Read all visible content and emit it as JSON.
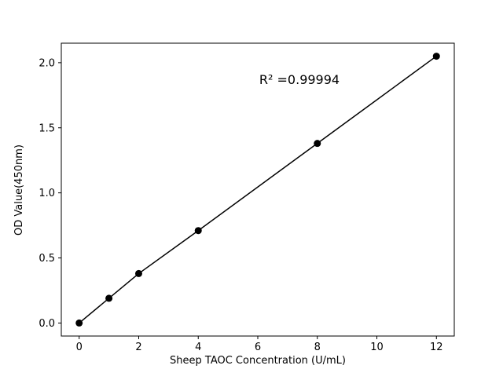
{
  "chart_data": {
    "type": "scatter",
    "x": [
      0,
      1,
      2,
      4,
      8,
      12
    ],
    "y": [
      0.0,
      0.19,
      0.38,
      0.71,
      1.38,
      2.05
    ],
    "line": true,
    "annotation": "R² =0.99994",
    "xlabel": "Sheep TAOC Concentration (U/mL)",
    "ylabel": "OD Value(450nm)",
    "xtick_values": [
      0,
      2,
      4,
      6,
      8,
      10,
      12
    ],
    "xtick_labels": [
      "0",
      "2",
      "4",
      "6",
      "8",
      "10",
      "12"
    ],
    "ytick_values": [
      0.0,
      0.5,
      1.0,
      1.5,
      2.0
    ],
    "ytick_labels": [
      "0.0",
      "0.5",
      "1.0",
      "1.5",
      "2.0"
    ],
    "xlim": [
      -0.6,
      12.6
    ],
    "ylim": [
      -0.1,
      2.15
    ],
    "grid": false,
    "legend_position": "none",
    "line_color": "#000000",
    "marker_color": "#000000",
    "background_color": "#ffffff"
  }
}
